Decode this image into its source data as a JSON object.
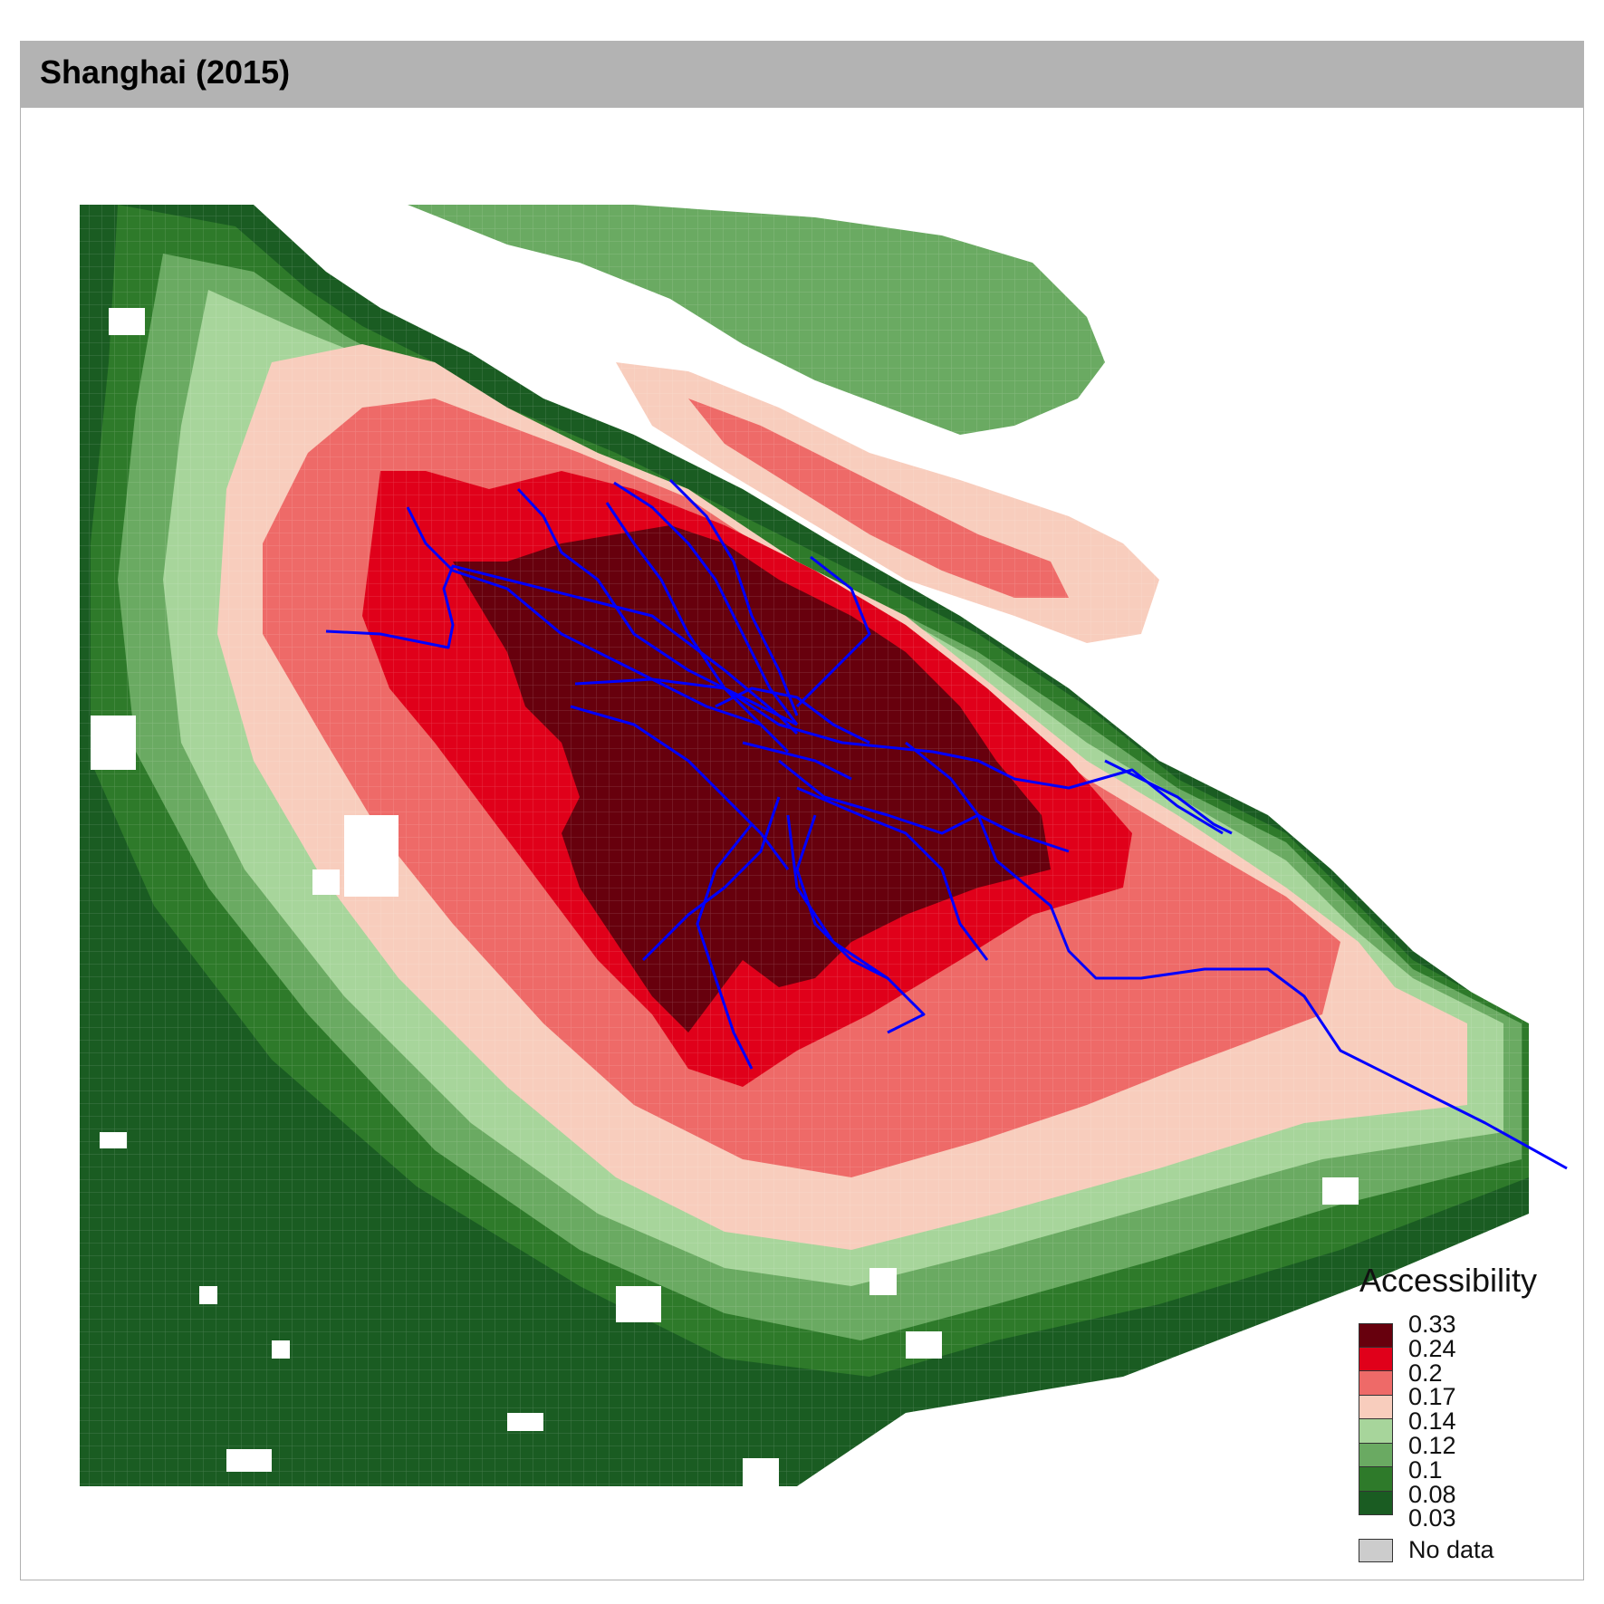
{
  "panel": {
    "title": "Shanghai (2015)"
  },
  "legend": {
    "title": "Accessibility",
    "breaks": [
      "0.33",
      "0.24",
      "0.2",
      "0.17",
      "0.14",
      "0.12",
      "0.1",
      "0.08",
      "0.03"
    ],
    "colors": [
      "#67000d",
      "#e0001a",
      "#ee6a68",
      "#f8cdbd",
      "#a7d59b",
      "#6aaa62",
      "#2e7a2a",
      "#1a5c22"
    ],
    "no_data_label": "No data",
    "no_data_color": "#cccccc"
  },
  "metro_color": "#0000ff"
}
